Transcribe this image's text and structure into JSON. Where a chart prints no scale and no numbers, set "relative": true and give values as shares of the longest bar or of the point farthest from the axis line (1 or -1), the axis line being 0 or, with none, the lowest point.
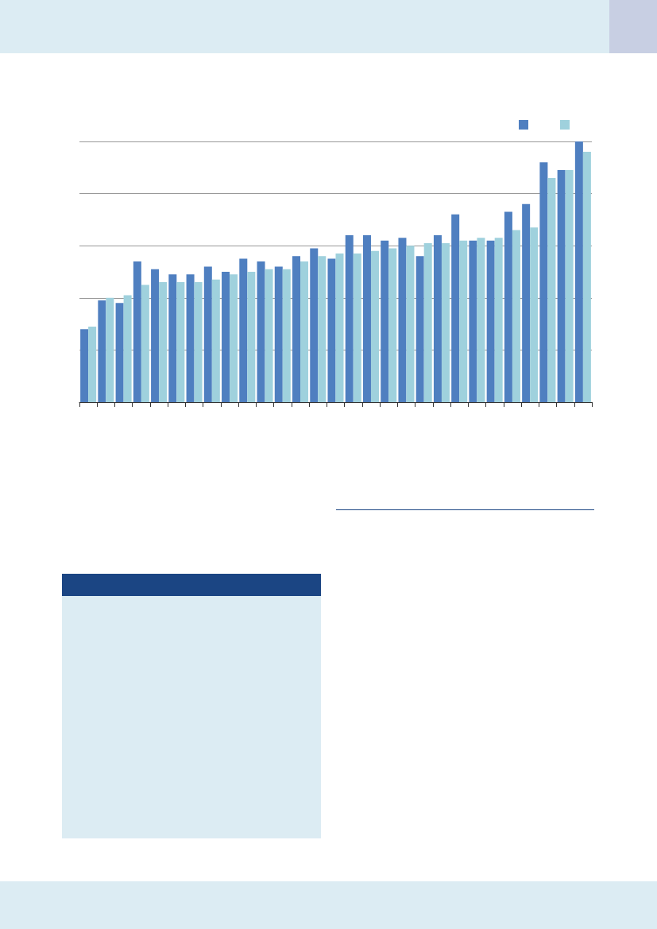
{
  "chart_data": {
    "type": "bar",
    "relative": true,
    "grid": "y",
    "categories": [
      null,
      null,
      null,
      null,
      null,
      null,
      null,
      null,
      null,
      null,
      null,
      null,
      null,
      null,
      null,
      null,
      null,
      null,
      null,
      null,
      null,
      null,
      null,
      null,
      null,
      null,
      null,
      null,
      null
    ],
    "series": [
      {
        "color": "#4f7fc0",
        "values": [
          0.28,
          0.39,
          0.38,
          0.54,
          0.51,
          0.49,
          0.49,
          0.52,
          0.5,
          0.55,
          0.54,
          0.52,
          0.56,
          0.59,
          0.55,
          0.64,
          0.64,
          0.62,
          0.63,
          0.56,
          0.64,
          0.72,
          0.62,
          0.62,
          0.73,
          0.76,
          0.92,
          0.89,
          1
        ]
      },
      {
        "color": "#9fd1dd",
        "values": [
          0.29,
          0.4,
          0.41,
          0.45,
          0.46,
          0.46,
          0.46,
          0.47,
          0.49,
          0.5,
          0.51,
          0.51,
          0.54,
          0.56,
          0.57,
          0.57,
          0.58,
          0.59,
          0.6,
          0.61,
          0.61,
          0.62,
          0.63,
          0.63,
          0.66,
          0.67,
          0.86,
          0.89,
          0.96
        ]
      }
    ]
  }
}
